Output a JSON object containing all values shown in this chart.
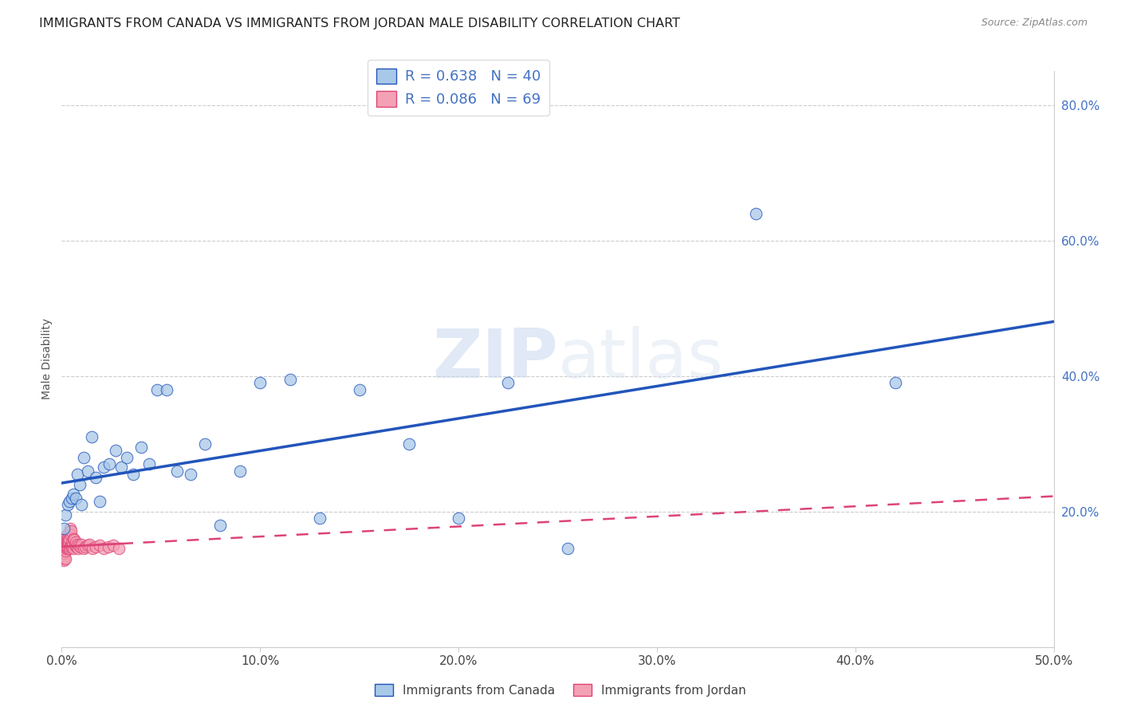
{
  "title": "IMMIGRANTS FROM CANADA VS IMMIGRANTS FROM JORDAN MALE DISABILITY CORRELATION CHART",
  "source": "Source: ZipAtlas.com",
  "ylabel": "Male Disability",
  "xlim": [
    0.0,
    0.5
  ],
  "ylim": [
    0.0,
    0.85
  ],
  "xtick_labels": [
    "0.0%",
    "10.0%",
    "20.0%",
    "30.0%",
    "40.0%",
    "50.0%"
  ],
  "xtick_values": [
    0.0,
    0.1,
    0.2,
    0.3,
    0.4,
    0.5
  ],
  "ytick_labels": [
    "20.0%",
    "40.0%",
    "60.0%",
    "80.0%"
  ],
  "ytick_values": [
    0.2,
    0.4,
    0.6,
    0.8
  ],
  "canada_R": 0.638,
  "canada_N": 40,
  "jordan_R": 0.086,
  "jordan_N": 69,
  "canada_color": "#a8c8e8",
  "jordan_color": "#f4a0b5",
  "canada_line_color": "#2255bb",
  "jordan_line_color": "#dd4477",
  "watermark": "ZIPatlas",
  "canada_x": [
    0.001,
    0.002,
    0.003,
    0.004,
    0.005,
    0.006,
    0.007,
    0.008,
    0.009,
    0.01,
    0.011,
    0.013,
    0.015,
    0.017,
    0.019,
    0.021,
    0.024,
    0.027,
    0.03,
    0.033,
    0.036,
    0.04,
    0.044,
    0.048,
    0.053,
    0.058,
    0.065,
    0.072,
    0.08,
    0.09,
    0.1,
    0.115,
    0.13,
    0.15,
    0.175,
    0.2,
    0.225,
    0.255,
    0.35,
    0.42
  ],
  "canada_y": [
    0.175,
    0.195,
    0.21,
    0.215,
    0.22,
    0.225,
    0.22,
    0.255,
    0.24,
    0.21,
    0.28,
    0.26,
    0.31,
    0.25,
    0.215,
    0.265,
    0.27,
    0.29,
    0.265,
    0.28,
    0.255,
    0.295,
    0.27,
    0.38,
    0.38,
    0.26,
    0.255,
    0.3,
    0.18,
    0.26,
    0.39,
    0.395,
    0.19,
    0.38,
    0.3,
    0.19,
    0.39,
    0.145,
    0.64,
    0.39
  ],
  "jordan_x": [
    0.0,
    0.0002,
    0.0003,
    0.0004,
    0.0005,
    0.0006,
    0.0007,
    0.0008,
    0.0008,
    0.0009,
    0.001,
    0.0011,
    0.0012,
    0.0013,
    0.0014,
    0.0015,
    0.0016,
    0.0017,
    0.0018,
    0.0019,
    0.002,
    0.0021,
    0.0022,
    0.0023,
    0.0024,
    0.0025,
    0.0026,
    0.0027,
    0.0028,
    0.0029,
    0.003,
    0.0031,
    0.0032,
    0.0033,
    0.0035,
    0.0036,
    0.0038,
    0.0039,
    0.004,
    0.0042,
    0.0043,
    0.0045,
    0.0046,
    0.0048,
    0.005,
    0.0052,
    0.0055,
    0.0058,
    0.006,
    0.0063,
    0.0066,
    0.007,
    0.0074,
    0.0078,
    0.0082,
    0.0088,
    0.0094,
    0.01,
    0.011,
    0.012,
    0.013,
    0.014,
    0.0155,
    0.017,
    0.019,
    0.021,
    0.0235,
    0.026,
    0.029
  ],
  "jordan_y": [
    0.15,
    0.148,
    0.145,
    0.143,
    0.14,
    0.138,
    0.135,
    0.133,
    0.13,
    0.128,
    0.132,
    0.135,
    0.138,
    0.132,
    0.14,
    0.145,
    0.138,
    0.13,
    0.142,
    0.148,
    0.15,
    0.145,
    0.155,
    0.16,
    0.148,
    0.155,
    0.162,
    0.158,
    0.165,
    0.145,
    0.155,
    0.15,
    0.148,
    0.162,
    0.155,
    0.168,
    0.145,
    0.17,
    0.158,
    0.175,
    0.148,
    0.165,
    0.172,
    0.15,
    0.155,
    0.148,
    0.152,
    0.16,
    0.145,
    0.158,
    0.15,
    0.155,
    0.148,
    0.152,
    0.145,
    0.15,
    0.148,
    0.152,
    0.145,
    0.148,
    0.15,
    0.152,
    0.145,
    0.148,
    0.15,
    0.145,
    0.148,
    0.15,
    0.145
  ]
}
